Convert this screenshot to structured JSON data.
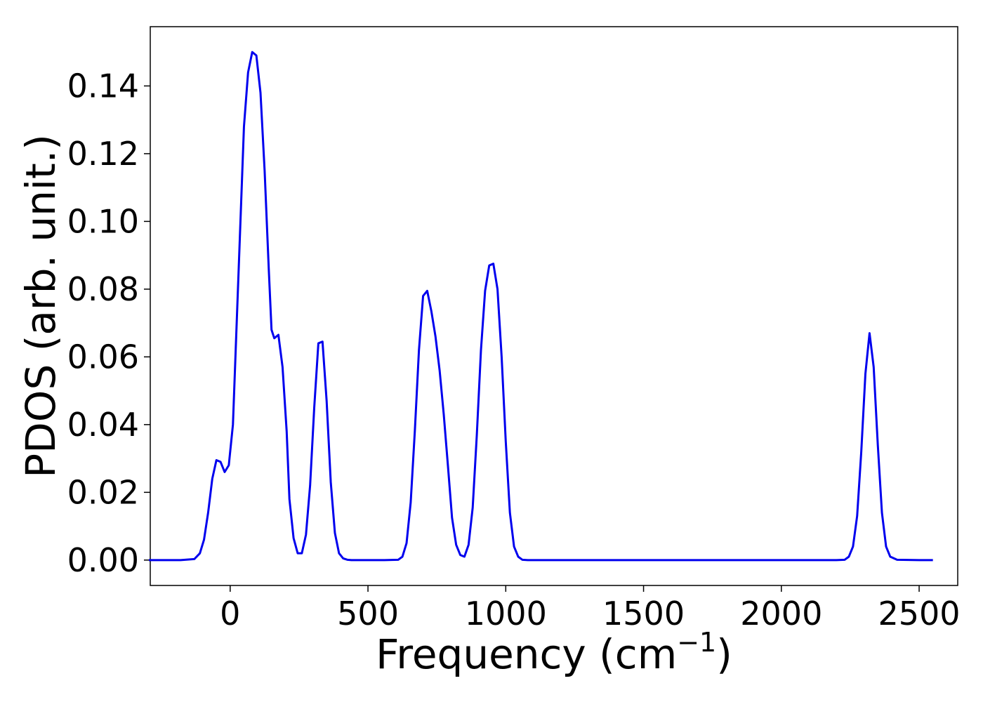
{
  "chart_data": {
    "type": "line",
    "title": "",
    "xlabel": "Frequency (cm",
    "xlabel_superscript": "−1",
    "xlabel_close": ")",
    "ylabel": "PDOS (arb. unit.)",
    "xlim": [
      -290,
      2640
    ],
    "ylim": [
      -0.0075,
      0.1575
    ],
    "grid": false,
    "legend": "none",
    "line_color": "#0000ee",
    "x_ticks": [
      0,
      500,
      1000,
      1500,
      2000,
      2500
    ],
    "x_tick_labels": [
      "0",
      "500",
      "1000",
      "1500",
      "2000",
      "2500"
    ],
    "y_ticks": [
      0.0,
      0.02,
      0.04,
      0.06,
      0.08,
      0.1,
      0.12,
      0.14
    ],
    "y_tick_labels": [
      "0.00",
      "0.02",
      "0.04",
      "0.06",
      "0.08",
      "0.10",
      "0.12",
      "0.14"
    ],
    "series": [
      {
        "x": [
          -295,
          -240,
          -180,
          -130,
          -110,
          -95,
          -80,
          -65,
          -50,
          -35,
          -20,
          -5,
          10,
          20,
          35,
          50,
          65,
          80,
          95,
          110,
          125,
          140,
          150,
          160,
          175,
          190,
          205,
          215,
          230,
          245,
          260,
          275,
          290,
          305,
          320,
          335,
          350,
          365,
          380,
          395,
          410,
          425,
          440,
          460,
          500,
          560,
          610,
          625,
          640,
          655,
          670,
          685,
          700,
          715,
          730,
          745,
          760,
          775,
          790,
          805,
          820,
          835,
          850,
          865,
          880,
          895,
          910,
          925,
          940,
          955,
          970,
          985,
          1000,
          1015,
          1030,
          1045,
          1060,
          1080,
          1200,
          1600,
          2000,
          2200,
          2230,
          2245,
          2260,
          2275,
          2290,
          2305,
          2320,
          2335,
          2350,
          2365,
          2380,
          2395,
          2420,
          2500,
          2550
        ],
        "y": [
          0.0,
          0.0,
          0.0,
          0.0003,
          0.002,
          0.006,
          0.014,
          0.024,
          0.0295,
          0.029,
          0.026,
          0.028,
          0.04,
          0.062,
          0.095,
          0.128,
          0.144,
          0.15,
          0.149,
          0.138,
          0.115,
          0.086,
          0.068,
          0.0655,
          0.0665,
          0.057,
          0.038,
          0.018,
          0.0065,
          0.002,
          0.002,
          0.0075,
          0.022,
          0.045,
          0.064,
          0.0645,
          0.047,
          0.023,
          0.008,
          0.002,
          0.0005,
          0.0001,
          0.0,
          0.0,
          0.0,
          0.0,
          0.0001,
          0.001,
          0.005,
          0.017,
          0.038,
          0.062,
          0.078,
          0.0795,
          0.0735,
          0.066,
          0.056,
          0.043,
          0.028,
          0.0125,
          0.0045,
          0.0015,
          0.001,
          0.0045,
          0.0155,
          0.037,
          0.062,
          0.0795,
          0.087,
          0.0875,
          0.08,
          0.06,
          0.035,
          0.014,
          0.004,
          0.001,
          0.0001,
          0.0,
          0.0,
          0.0,
          0.0,
          0.0,
          0.0001,
          0.001,
          0.004,
          0.013,
          0.032,
          0.055,
          0.067,
          0.057,
          0.034,
          0.014,
          0.004,
          0.001,
          0.0001,
          0.0,
          0.0
        ]
      }
    ]
  }
}
